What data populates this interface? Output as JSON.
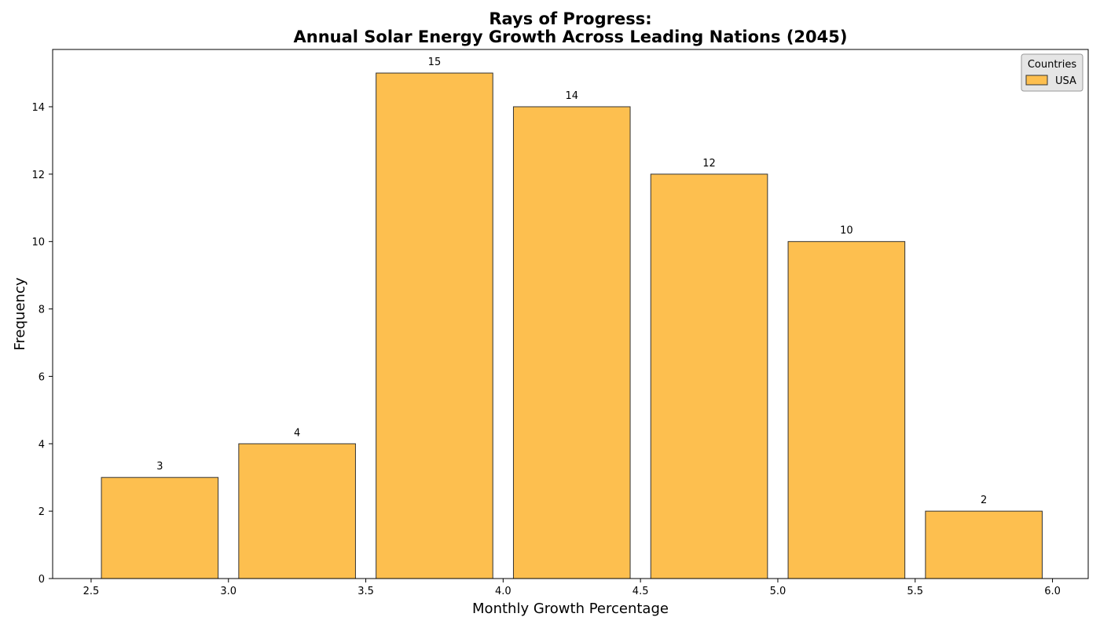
{
  "chart_data": {
    "type": "bar",
    "title_line1": "Rays of Progress:",
    "title_line2": "Annual Solar Energy Growth Across Leading Nations (2045)",
    "xlabel": "Monthly Growth Percentage",
    "ylabel": "Frequency",
    "bins": [
      {
        "start": 2.5,
        "end": 3.0,
        "value": 3
      },
      {
        "start": 3.0,
        "end": 3.5,
        "value": 4
      },
      {
        "start": 3.5,
        "end": 4.0,
        "value": 15
      },
      {
        "start": 4.0,
        "end": 4.5,
        "value": 14
      },
      {
        "start": 4.5,
        "end": 5.0,
        "value": 12
      },
      {
        "start": 5.0,
        "end": 5.5,
        "value": 10
      },
      {
        "start": 5.5,
        "end": 6.0,
        "value": 2
      }
    ],
    "series": [
      {
        "name": "USA",
        "values": [
          3,
          4,
          15,
          14,
          12,
          10,
          2
        ],
        "color": "#fdbf4f"
      }
    ],
    "xlim": [
      2.36,
      6.13
    ],
    "ylim": [
      0,
      15.7
    ],
    "xticks": [
      "2.5",
      "3.0",
      "3.5",
      "4.0",
      "4.5",
      "5.0",
      "5.5",
      "6.0"
    ],
    "xtick_values": [
      2.5,
      3.0,
      3.5,
      4.0,
      4.5,
      5.0,
      5.5,
      6.0
    ],
    "yticks": [
      "0",
      "2",
      "4",
      "6",
      "8",
      "10",
      "12",
      "14"
    ],
    "ytick_values": [
      0,
      2,
      4,
      6,
      8,
      10,
      12,
      14
    ],
    "legend": {
      "title": "Countries",
      "placement": "top-right"
    },
    "grid": false,
    "bar_edge_color": "#333333"
  }
}
